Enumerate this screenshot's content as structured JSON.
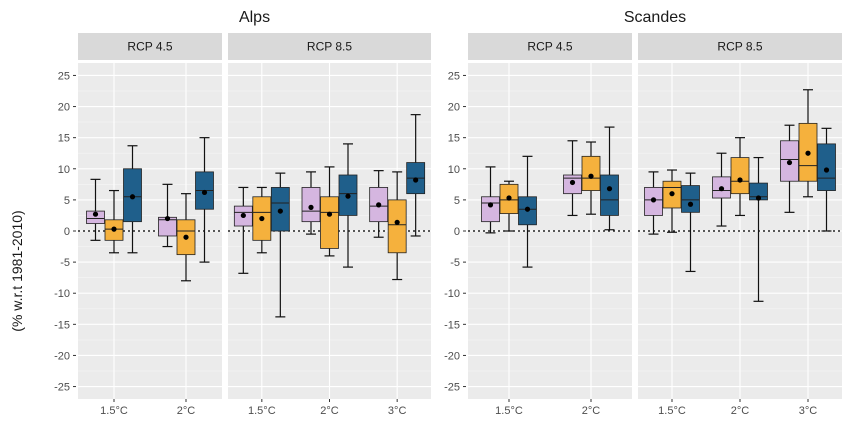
{
  "chart_data": {
    "type": "boxplot",
    "ylabel": "(% w.r.t 1981-2010)",
    "ylim": [
      -27,
      27
    ],
    "yticks": [
      -25,
      -20,
      -15,
      -10,
      -5,
      0,
      5,
      10,
      15,
      20,
      25
    ],
    "reference_line": 0,
    "series_colors": [
      "#d5b6e0",
      "#f5b13d",
      "#1f5f8b"
    ],
    "legend": "none",
    "regions": [
      {
        "title": "Alps",
        "panels": [
          {
            "label": "RCP 4.5",
            "categories": [
              "1.5°C",
              "2°C"
            ],
            "groups": [
              [
                {
                  "whislo": -1.5,
                  "q1": 1.2,
                  "med": 2.0,
                  "q3": 3.2,
                  "whishi": 8.3,
                  "mean": 2.7
                },
                {
                  "whislo": -3.5,
                  "q1": -1.5,
                  "med": 0.3,
                  "q3": 1.8,
                  "whishi": 6.5,
                  "mean": 0.3
                },
                {
                  "whislo": -3.5,
                  "q1": 1.5,
                  "med": 5.5,
                  "q3": 10.0,
                  "whishi": 13.7,
                  "mean": 5.5
                }
              ],
              [
                {
                  "whislo": -2.5,
                  "q1": -0.8,
                  "med": 1.8,
                  "q3": 2.2,
                  "whishi": 7.5,
                  "mean": 2.0
                },
                {
                  "whislo": -8.0,
                  "q1": -3.8,
                  "med": 0.0,
                  "q3": 1.8,
                  "whishi": 6.0,
                  "mean": -1.0
                },
                {
                  "whislo": -5.0,
                  "q1": 3.5,
                  "med": 6.5,
                  "q3": 9.5,
                  "whishi": 15.0,
                  "mean": 6.2
                }
              ]
            ]
          },
          {
            "label": "RCP 8.5",
            "categories": [
              "1.5°C",
              "2°C",
              "3°C"
            ],
            "groups": [
              [
                {
                  "whislo": -6.8,
                  "q1": 0.8,
                  "med": 3.0,
                  "q3": 4.0,
                  "whishi": 7.0,
                  "mean": 2.5
                },
                {
                  "whislo": -3.5,
                  "q1": -1.5,
                  "med": 3.0,
                  "q3": 5.5,
                  "whishi": 7.0,
                  "mean": 2.0
                },
                {
                  "whislo": -13.8,
                  "q1": 0.0,
                  "med": 4.5,
                  "q3": 7.0,
                  "whishi": 9.3,
                  "mean": 3.2
                }
              ],
              [
                {
                  "whislo": -0.5,
                  "q1": 1.5,
                  "med": 3.2,
                  "q3": 7.0,
                  "whishi": 9.5,
                  "mean": 3.8
                },
                {
                  "whislo": -4.0,
                  "q1": -2.8,
                  "med": 3.0,
                  "q3": 5.5,
                  "whishi": 10.3,
                  "mean": 2.7
                },
                {
                  "whislo": -5.8,
                  "q1": 2.5,
                  "med": 6.0,
                  "q3": 9.0,
                  "whishi": 14.0,
                  "mean": 5.6
                }
              ],
              [
                {
                  "whislo": -1.0,
                  "q1": 1.5,
                  "med": 4.0,
                  "q3": 7.0,
                  "whishi": 9.7,
                  "mean": 4.2
                },
                {
                  "whislo": -7.8,
                  "q1": -3.5,
                  "med": 1.0,
                  "q3": 5.0,
                  "whishi": 9.5,
                  "mean": 1.4
                },
                {
                  "whislo": -0.8,
                  "q1": 6.0,
                  "med": 8.5,
                  "q3": 11.0,
                  "whishi": 18.7,
                  "mean": 8.2
                }
              ]
            ]
          }
        ]
      },
      {
        "title": "Scandes",
        "panels": [
          {
            "label": "RCP 4.5",
            "categories": [
              "1.5°C",
              "2°C"
            ],
            "groups": [
              [
                {
                  "whislo": -0.3,
                  "q1": 1.5,
                  "med": 4.5,
                  "q3": 5.5,
                  "whishi": 10.3,
                  "mean": 4.2
                },
                {
                  "whislo": 0.0,
                  "q1": 2.8,
                  "med": 5.0,
                  "q3": 7.5,
                  "whishi": 8.0,
                  "mean": 5.3
                },
                {
                  "whislo": -5.8,
                  "q1": 1.0,
                  "med": 3.5,
                  "q3": 5.5,
                  "whishi": 12.0,
                  "mean": 3.5
                }
              ],
              [
                {
                  "whislo": 2.5,
                  "q1": 6.0,
                  "med": 8.5,
                  "q3": 9.0,
                  "whishi": 14.5,
                  "mean": 7.8
                },
                {
                  "whislo": 2.7,
                  "q1": 6.5,
                  "med": 8.5,
                  "q3": 12.0,
                  "whishi": 14.3,
                  "mean": 8.8
                },
                {
                  "whislo": 0.2,
                  "q1": 2.5,
                  "med": 5.0,
                  "q3": 9.0,
                  "whishi": 16.7,
                  "mean": 6.8
                }
              ]
            ]
          },
          {
            "label": "RCP 8.5",
            "categories": [
              "1.5°C",
              "2°C",
              "3°C"
            ],
            "groups": [
              [
                {
                  "whislo": -0.5,
                  "q1": 2.5,
                  "med": 5.0,
                  "q3": 7.0,
                  "whishi": 9.5,
                  "mean": 5.0
                },
                {
                  "whislo": -0.2,
                  "q1": 3.7,
                  "med": 7.0,
                  "q3": 8.0,
                  "whishi": 9.8,
                  "mean": 6.0
                },
                {
                  "whislo": -6.5,
                  "q1": 3.0,
                  "med": 5.0,
                  "q3": 7.3,
                  "whishi": 9.3,
                  "mean": 4.3
                }
              ],
              [
                {
                  "whislo": 0.8,
                  "q1": 5.3,
                  "med": 6.5,
                  "q3": 8.7,
                  "whishi": 12.5,
                  "mean": 6.8
                },
                {
                  "whislo": 2.5,
                  "q1": 6.0,
                  "med": 8.0,
                  "q3": 11.8,
                  "whishi": 15.0,
                  "mean": 8.2
                },
                {
                  "whislo": -11.3,
                  "q1": 5.0,
                  "med": 5.5,
                  "q3": 7.7,
                  "whishi": 11.8,
                  "mean": 5.3
                }
              ],
              [
                {
                  "whislo": 3.0,
                  "q1": 8.0,
                  "med": 11.5,
                  "q3": 14.5,
                  "whishi": 17.0,
                  "mean": 11.0
                },
                {
                  "whislo": 5.5,
                  "q1": 8.0,
                  "med": 10.5,
                  "q3": 17.3,
                  "whishi": 22.7,
                  "mean": 12.5
                },
                {
                  "whislo": 0.0,
                  "q1": 6.5,
                  "med": 8.5,
                  "q3": 14.0,
                  "whishi": 16.5,
                  "mean": 9.8
                }
              ]
            ]
          }
        ]
      }
    ]
  }
}
